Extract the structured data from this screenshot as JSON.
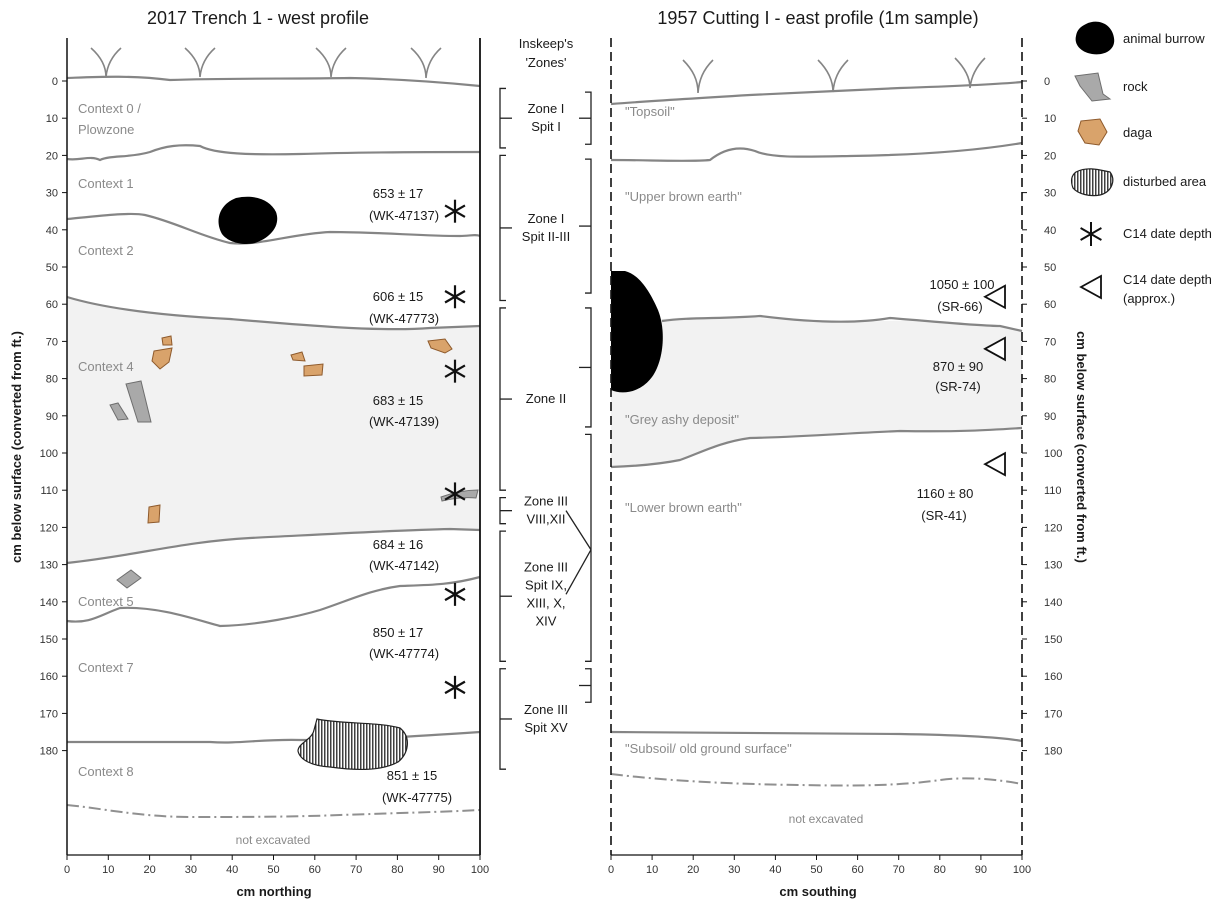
{
  "left_panel": {
    "title": "2017 Trench 1 -  west profile",
    "xlabel": "cm northing",
    "ylabel": "cm below surface (converted from ft.)",
    "contexts": [
      "Context 0 /",
      "Plowzone",
      "Context 1",
      "Context 2",
      "Context 4",
      "Context 5",
      "Context 7",
      "Context 8"
    ],
    "not_excavated": "not excavated",
    "dates": [
      {
        "value": "653 ± 17",
        "lab": "(WK-47137)",
        "depth": 35
      },
      {
        "value": "606 ± 15",
        "lab": "(WK-47773)",
        "depth": 58
      },
      {
        "value": "683 ± 15",
        "lab": "(WK-47139)",
        "depth": 78
      },
      {
        "value": "684 ± 16",
        "lab": "(WK-47142)",
        "depth": 111
      },
      {
        "value": "850 ± 17",
        "lab": "(WK-47774)",
        "depth": 138
      },
      {
        "value": "851 ± 15",
        "lab": "(WK-47775)",
        "depth": 163
      }
    ]
  },
  "right_panel": {
    "title": "1957 Cutting I -  east profile (1m sample)",
    "xlabel": "cm southing",
    "ylabel": "cm below surface (converted from ft.)",
    "layers": [
      "\"Topsoil\"",
      "\"Upper brown earth\"",
      "\"Grey ashy deposit\"",
      "\"Lower brown earth\"",
      "\"Subsoil/ old ground surface\""
    ],
    "not_excavated": "not excavated",
    "dates": [
      {
        "value": "1050 ± 100",
        "lab": "(SR-66)",
        "depth": 58
      },
      {
        "value": "870 ± 90",
        "lab": "(SR-74)",
        "depth": 72
      },
      {
        "value": "1160 ± 80",
        "lab": "(SR-41)",
        "depth": 103
      }
    ]
  },
  "zones": {
    "header_line1": "Inskeep's",
    "header_line2": "'Zones'",
    "items": [
      {
        "lines": [
          "Zone I",
          "Spit I"
        ],
        "left_top": 2,
        "left_bottom": 18,
        "right_top": 3,
        "right_bottom": 17
      },
      {
        "lines": [
          "Zone I",
          "Spit II-III"
        ],
        "left_top": 20,
        "left_bottom": 59,
        "right_top": 21,
        "right_bottom": 57
      },
      {
        "lines": [
          "Zone II"
        ],
        "left_top": 61,
        "left_bottom": 110,
        "right_top": 61,
        "right_bottom": 93
      },
      {
        "lines": [
          "Zone III",
          "VIII,XII"
        ],
        "left_top": 112,
        "left_bottom": 119,
        "right_top": 95,
        "right_bottom": 156
      },
      {
        "lines": [
          "Zone III",
          "Spit IX,",
          "XIII, X,",
          "XIV"
        ],
        "left_top": 121,
        "left_bottom": 156,
        "right_top": 95,
        "right_bottom": 156
      },
      {
        "lines": [
          "Zone III",
          "Spit XV"
        ],
        "left_top": 158,
        "left_bottom": 185,
        "right_top": 158,
        "right_bottom": 167
      }
    ]
  },
  "axes": {
    "depth_ticks": [
      0,
      10,
      20,
      30,
      40,
      50,
      60,
      70,
      80,
      90,
      100,
      110,
      120,
      130,
      140,
      150,
      160,
      170,
      180
    ],
    "horizontal_ticks": [
      0,
      10,
      20,
      30,
      40,
      50,
      60,
      70,
      80,
      90,
      100
    ],
    "depth_range": [
      -10,
      190
    ]
  },
  "legend": {
    "items": [
      {
        "icon": "animal-burrow-icon",
        "lines": [
          "animal burrow"
        ]
      },
      {
        "icon": "rock-icon",
        "lines": [
          "rock"
        ]
      },
      {
        "icon": "daga-icon",
        "lines": [
          "daga"
        ]
      },
      {
        "icon": "disturbed-area-icon",
        "lines": [
          "disturbed area"
        ]
      },
      {
        "icon": "asterisk-icon",
        "lines": [
          "C14 date depth"
        ]
      },
      {
        "icon": "triangle-icon",
        "lines": [
          "C14 date depth",
          "(approx.)"
        ]
      }
    ]
  },
  "colors": {
    "deposit_fill": "#f2f2f2",
    "boundary": "#858585",
    "burrow": "#000000",
    "rock": "#a9a9a9",
    "daga": "#d9a36b"
  }
}
